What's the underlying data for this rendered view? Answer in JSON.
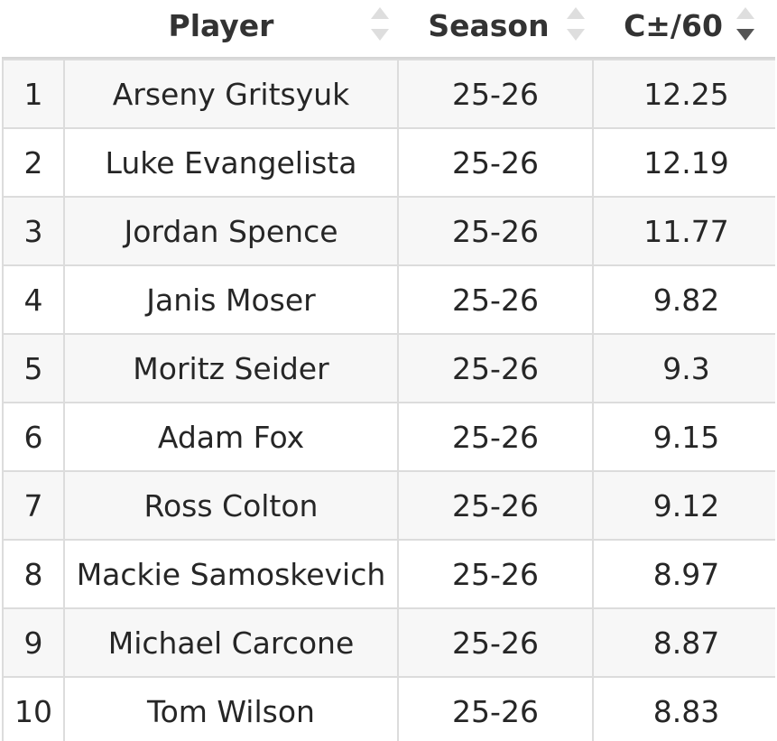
{
  "header": {
    "player": "Player",
    "season": "Season",
    "cpm": "C±/60"
  },
  "sort": {
    "active_column": "cpm",
    "direction": "descending"
  },
  "rows": [
    {
      "rank": "1",
      "player": "Arseny Gritsyuk",
      "season": "25-26",
      "cpm": "12.25"
    },
    {
      "rank": "2",
      "player": "Luke Evangelista",
      "season": "25-26",
      "cpm": "12.19"
    },
    {
      "rank": "3",
      "player": "Jordan Spence",
      "season": "25-26",
      "cpm": "11.77"
    },
    {
      "rank": "4",
      "player": "Janis Moser",
      "season": "25-26",
      "cpm": "9.82"
    },
    {
      "rank": "5",
      "player": "Moritz Seider",
      "season": "25-26",
      "cpm": "9.3"
    },
    {
      "rank": "6",
      "player": "Adam Fox",
      "season": "25-26",
      "cpm": "9.15"
    },
    {
      "rank": "7",
      "player": "Ross Colton",
      "season": "25-26",
      "cpm": "9.12"
    },
    {
      "rank": "8",
      "player": "Mackie Samoskevich",
      "season": "25-26",
      "cpm": "8.97"
    },
    {
      "rank": "9",
      "player": "Michael Carcone",
      "season": "25-26",
      "cpm": "8.87"
    },
    {
      "rank": "10",
      "player": "Tom Wilson",
      "season": "25-26",
      "cpm": "8.83"
    }
  ]
}
